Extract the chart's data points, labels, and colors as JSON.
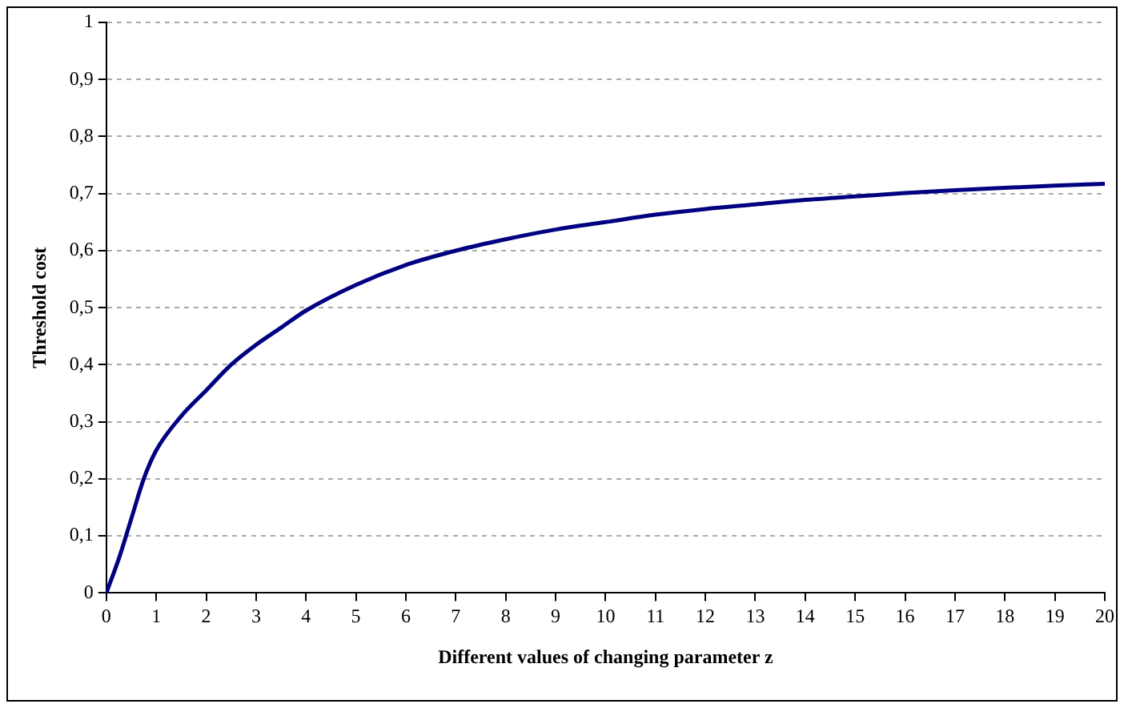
{
  "chart_data": {
    "type": "line",
    "xlabel": "Different values of changing parameter z",
    "ylabel": "Threshold cost",
    "x": [
      0,
      0.25,
      0.5,
      0.75,
      1,
      1.5,
      2,
      2.5,
      3,
      3.5,
      4,
      5,
      6,
      7,
      8,
      9,
      10,
      11,
      12,
      13,
      14,
      15,
      16,
      17,
      18,
      19,
      20
    ],
    "series": [
      {
        "color": "#000080",
        "values": [
          0,
          0.06,
          0.13,
          0.2,
          0.25,
          0.31,
          0.355,
          0.4,
          0.435,
          0.465,
          0.495,
          0.54,
          0.575,
          0.6,
          0.62,
          0.637,
          0.65,
          0.663,
          0.673,
          0.681,
          0.689,
          0.695,
          0.701,
          0.706,
          0.71,
          0.714,
          0.717
        ]
      }
    ],
    "xlim": [
      0,
      20
    ],
    "xticks": [
      0,
      1,
      2,
      3,
      4,
      5,
      6,
      7,
      8,
      9,
      10,
      11,
      12,
      13,
      14,
      15,
      16,
      17,
      18,
      19,
      20
    ],
    "ylim": [
      0,
      1
    ],
    "yticks": [
      0,
      {
        "value": 0.1,
        "label": "0,1"
      },
      {
        "value": 0.2,
        "label": "0,2"
      },
      {
        "value": 0.3,
        "label": "0,3"
      },
      {
        "value": 0.4,
        "label": "0,4"
      },
      {
        "value": 0.5,
        "label": "0,5"
      },
      {
        "value": 0.6,
        "label": "0,6"
      },
      {
        "value": 0.7,
        "label": "0,7"
      },
      {
        "value": 0.8,
        "label": "0,8"
      },
      {
        "value": 0.9,
        "label": "0,9"
      },
      1
    ],
    "grid": "y",
    "legend": false,
    "marker": "none",
    "line_style": "solid"
  }
}
